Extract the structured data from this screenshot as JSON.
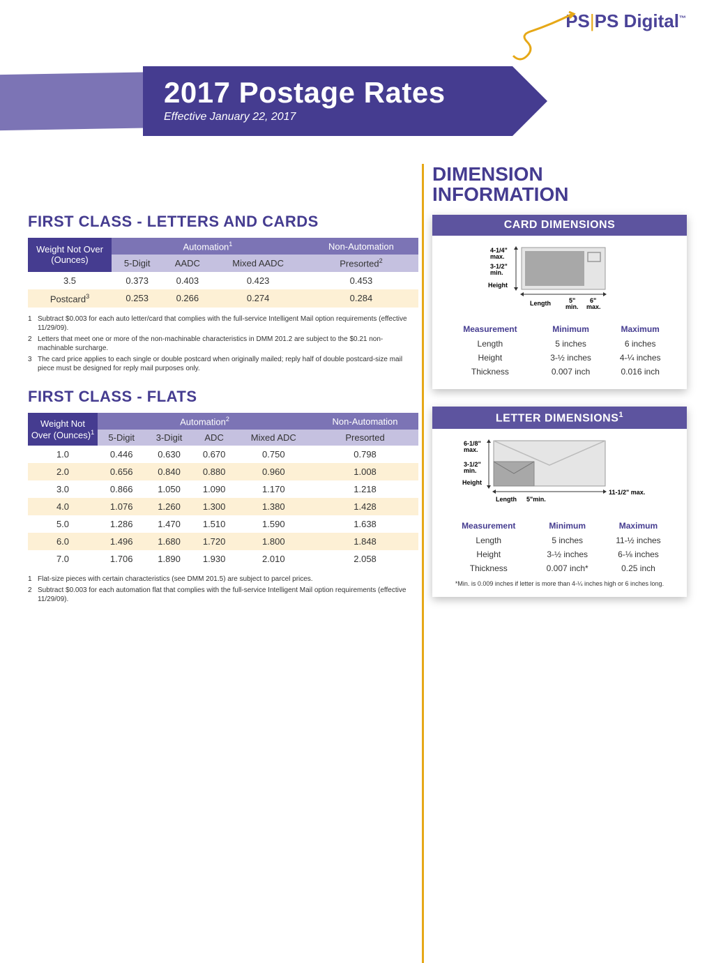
{
  "logo": {
    "ps": "PS",
    "bar": "|",
    "digital": "PS Digital",
    "tm": "™"
  },
  "banner": {
    "title": "2017 Postage Rates",
    "subtitle": "Effective January 22, 2017"
  },
  "section1": {
    "title": "FIRST CLASS - LETTERS AND CARDS",
    "col_weight": "Weight Not Over (Ounces)",
    "col_auto": "Automation",
    "col_nonauto": "Non-Automation",
    "sub": {
      "c1": "5-Digit",
      "c2": "AADC",
      "c3": "Mixed AADC",
      "c4": "Presorted"
    },
    "auto_sup": "1",
    "presort_sup": "2",
    "rows": [
      {
        "w": "3.5",
        "v1": "0.373",
        "v2": "0.403",
        "v3": "0.423",
        "v4": "0.453"
      },
      {
        "w": "Postcard",
        "wsup": "3",
        "v1": "0.253",
        "v2": "0.266",
        "v3": "0.274",
        "v4": "0.284"
      }
    ],
    "fn1": "Subtract $0.003 for each auto letter/card that complies with the full-service Intelligent Mail option requirements (effective 11/29/09).",
    "fn2": "Letters that meet one or more of the non-machinable characteristics in DMM 201.2 are subject to the $0.21 non-machinable surcharge.",
    "fn3": "The card price applies to each single or double postcard when originally mailed; reply half of double postcard-size mail piece must be designed for reply mail purposes only."
  },
  "section2": {
    "title": "FIRST CLASS - FLATS",
    "col_weight": "Weight Not Over (Ounces)",
    "weight_sup": "1",
    "col_auto": "Automation",
    "auto_sup": "2",
    "col_nonauto": "Non-Automation",
    "sub": {
      "c1": "5-Digit",
      "c2": "3-Digit",
      "c3": "ADC",
      "c4": "Mixed ADC",
      "c5": "Presorted"
    },
    "rows": [
      {
        "w": "1.0",
        "v1": "0.446",
        "v2": "0.630",
        "v3": "0.670",
        "v4": "0.750",
        "v5": "0.798"
      },
      {
        "w": "2.0",
        "v1": "0.656",
        "v2": "0.840",
        "v3": "0.880",
        "v4": "0.960",
        "v5": "1.008"
      },
      {
        "w": "3.0",
        "v1": "0.866",
        "v2": "1.050",
        "v3": "1.090",
        "v4": "1.170",
        "v5": "1.218"
      },
      {
        "w": "4.0",
        "v1": "1.076",
        "v2": "1.260",
        "v3": "1.300",
        "v4": "1.380",
        "v5": "1.428"
      },
      {
        "w": "5.0",
        "v1": "1.286",
        "v2": "1.470",
        "v3": "1.510",
        "v4": "1.590",
        "v5": "1.638"
      },
      {
        "w": "6.0",
        "v1": "1.496",
        "v2": "1.680",
        "v3": "1.720",
        "v4": "1.800",
        "v5": "1.848"
      },
      {
        "w": "7.0",
        "v1": "1.706",
        "v2": "1.890",
        "v3": "1.930",
        "v4": "2.010",
        "v5": "2.058"
      }
    ],
    "fn1": "Flat-size pieces with certain characteristics (see DMM 201.5) are subject to parcel prices.",
    "fn2": "Subtract $0.003 for each automation flat that complies with the full-service Intelligent Mail option requirements (effective 11/29/09)."
  },
  "side": {
    "title1": "DIMENSION",
    "title2": "INFORMATION",
    "card": {
      "header": "CARD DIMENSIONS",
      "labels": {
        "hmax": "4-1/4\" max.",
        "hmin": "3-1/2\" min.",
        "height": "Height",
        "length": "Length",
        "lmin": "5\" min.",
        "lmax": "6\" max."
      },
      "thead": {
        "m": "Measurement",
        "min": "Minimum",
        "max": "Maximum"
      },
      "rows": [
        {
          "m": "Length",
          "min": "5 inches",
          "max": "6 inches"
        },
        {
          "m": "Height",
          "min": "3-½ inches",
          "max": "4-¼ inches"
        },
        {
          "m": "Thickness",
          "min": "0.007 inch",
          "max": "0.016 inch"
        }
      ]
    },
    "letter": {
      "header": "LETTER DIMENSIONS",
      "header_sup": "1",
      "labels": {
        "hmax": "6-1/8\" max.",
        "hmin": "3-1/2\" min.",
        "height": "Height",
        "length": "Length",
        "lmin": "5\"min.",
        "lmax": "11-1/2\" max."
      },
      "thead": {
        "m": "Measurement",
        "min": "Minimum",
        "max": "Maximum"
      },
      "rows": [
        {
          "m": "Length",
          "min": "5 inches",
          "max": "11-½ inches"
        },
        {
          "m": "Height",
          "min": "3-½ inches",
          "max": "6-⅛ inches"
        },
        {
          "m": "Thickness",
          "min": "0.007 inch*",
          "max": "0.25 inch"
        }
      ],
      "note": "*Min. is 0.009 inches if letter is more than 4-¼ inches high or 6 inches long."
    }
  },
  "colors": {
    "primary": "#453c90",
    "secondary": "#7c74b5",
    "light": "#c5c1e0",
    "accent": "#e6a817",
    "alt_row": "#fdf0d5"
  }
}
